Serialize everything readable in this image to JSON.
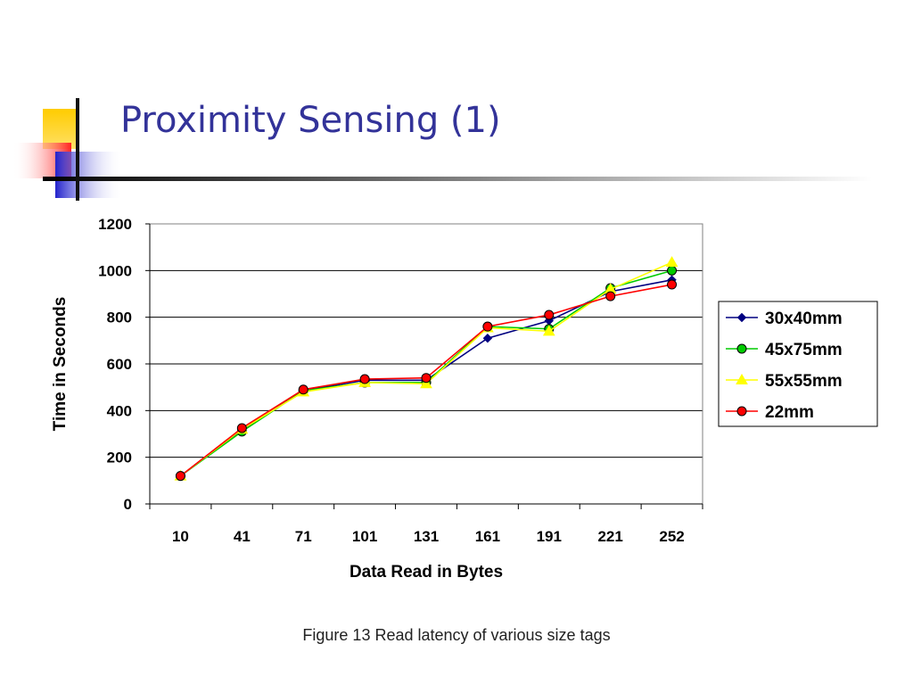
{
  "slide": {
    "title": "Proximity Sensing (1)",
    "caption": "Figure 13 Read latency of various size tags"
  },
  "colors": {
    "title": "#333399",
    "deco_yellow": "#ffcc00",
    "deco_red": "#ff3333",
    "deco_blue": "#3333cc"
  },
  "chart_data": {
    "type": "line",
    "categories": [
      "10",
      "41",
      "71",
      "101",
      "131",
      "161",
      "191",
      "221",
      "252"
    ],
    "xlabel": "Data Read in Bytes",
    "ylabel": "Time in Seconds",
    "ylim": [
      0,
      1200
    ],
    "yticks": [
      "0",
      "200",
      "400",
      "600",
      "800",
      "1000",
      "1200"
    ],
    "grid": true,
    "legend_position": "right",
    "series": [
      {
        "name": "30x40mm",
        "color": "#000080",
        "marker": "diamond",
        "values": [
          120,
          315,
          485,
          530,
          530,
          710,
          785,
          910,
          960
        ]
      },
      {
        "name": "45x75mm",
        "color": "#00cc00",
        "marker": "circle",
        "values": [
          120,
          310,
          485,
          520,
          520,
          760,
          750,
          925,
          1000
        ]
      },
      {
        "name": "55x55mm",
        "color": "#ffff00",
        "marker": "triangle",
        "values": [
          120,
          320,
          480,
          520,
          515,
          755,
          740,
          920,
          1035
        ]
      },
      {
        "name": "22mm",
        "color": "#ff0000",
        "marker": "circle",
        "values": [
          120,
          325,
          490,
          535,
          540,
          760,
          810,
          890,
          940
        ]
      }
    ]
  }
}
